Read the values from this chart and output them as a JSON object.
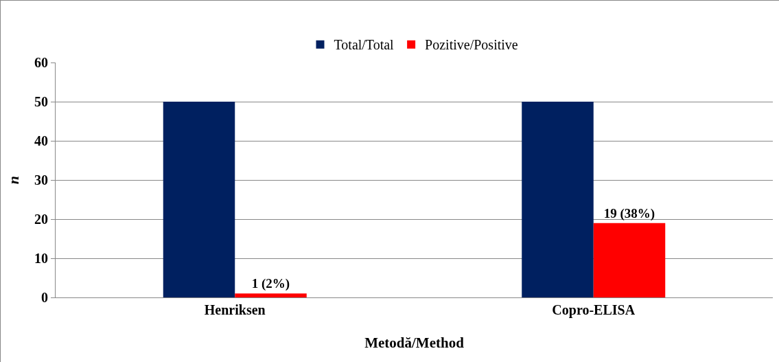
{
  "chart_data": {
    "type": "bar",
    "xlabel": "Metodă/Method",
    "ylabel": "n",
    "categories": [
      "Henriksen",
      "Copro-ELISA"
    ],
    "series": [
      {
        "name": "Total/Total",
        "color": "#002060",
        "values": [
          50,
          50
        ]
      },
      {
        "name": "Pozitive/Positive",
        "color": "#ff0000",
        "values": [
          1,
          19
        ],
        "value_labels": [
          "1 (2%)",
          "19 (38%)"
        ]
      }
    ],
    "ylim": [
      0,
      60
    ],
    "yticks": [
      0,
      10,
      20,
      30,
      40,
      50,
      60
    ],
    "grid": "y",
    "legend": "top"
  }
}
